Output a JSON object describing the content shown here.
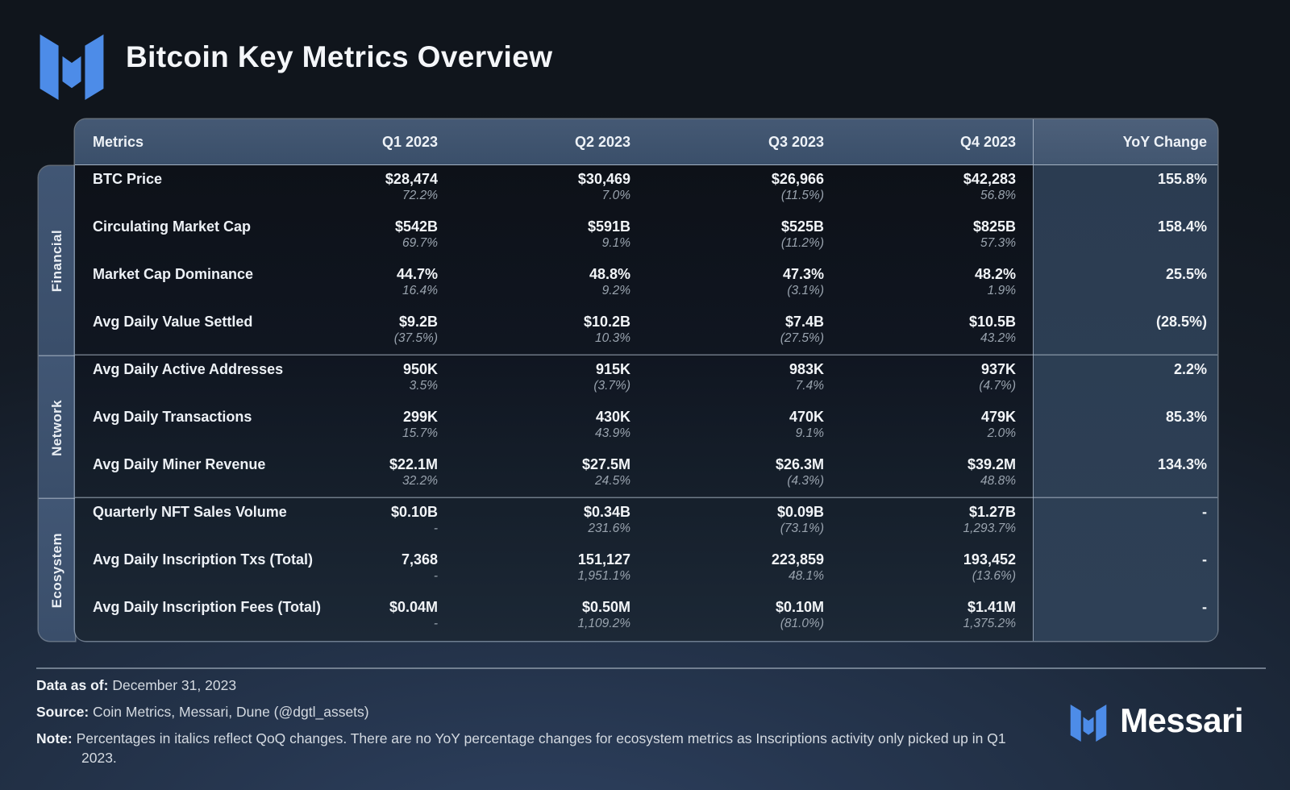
{
  "page": {
    "title": "Bitcoin Key Metrics Overview"
  },
  "colors": {
    "accent_blue": "#4D8CE8",
    "header_bg": "#3E536C",
    "yoy_panel_bg": "#2D3E53",
    "body_bg": "#10161F",
    "sub_text": "#99A3AE"
  },
  "chart_data": {
    "type": "table",
    "title": "Bitcoin Key Metrics Overview",
    "columns": [
      "Metrics",
      "Q1 2023",
      "Q2 2023",
      "Q3 2023",
      "Q4 2023",
      "YoY Change"
    ],
    "note": "Sub-values in italics are QoQ changes; values in parentheses are negative",
    "sections": [
      {
        "category": "Financial",
        "rows": [
          {
            "metric": "BTC Price",
            "q1": "$28,474",
            "q1_sub": "72.2%",
            "q2": "$30,469",
            "q2_sub": "7.0%",
            "q3": "$26,966",
            "q3_sub": "(11.5%)",
            "q4": "$42,283",
            "q4_sub": "56.8%",
            "yoy": "155.8%"
          },
          {
            "metric": "Circulating Market Cap",
            "q1": "$542B",
            "q1_sub": "69.7%",
            "q2": "$591B",
            "q2_sub": "9.1%",
            "q3": "$525B",
            "q3_sub": "(11.2%)",
            "q4": "$825B",
            "q4_sub": "57.3%",
            "yoy": "158.4%"
          },
          {
            "metric": "Market Cap Dominance",
            "q1": "44.7%",
            "q1_sub": "16.4%",
            "q2": "48.8%",
            "q2_sub": "9.2%",
            "q3": "47.3%",
            "q3_sub": "(3.1%)",
            "q4": "48.2%",
            "q4_sub": "1.9%",
            "yoy": "25.5%"
          },
          {
            "metric": "Avg Daily Value Settled",
            "q1": "$9.2B",
            "q1_sub": "(37.5%)",
            "q2": "$10.2B",
            "q2_sub": "10.3%",
            "q3": "$7.4B",
            "q3_sub": "(27.5%)",
            "q4": "$10.5B",
            "q4_sub": "43.2%",
            "yoy": "(28.5%)"
          }
        ]
      },
      {
        "category": "Network",
        "rows": [
          {
            "metric": "Avg Daily Active Addresses",
            "q1": "950K",
            "q1_sub": "3.5%",
            "q2": "915K",
            "q2_sub": "(3.7%)",
            "q3": "983K",
            "q3_sub": "7.4%",
            "q4": "937K",
            "q4_sub": "(4.7%)",
            "yoy": "2.2%"
          },
          {
            "metric": "Avg Daily Transactions",
            "q1": "299K",
            "q1_sub": "15.7%",
            "q2": "430K",
            "q2_sub": "43.9%",
            "q3": "470K",
            "q3_sub": "9.1%",
            "q4": "479K",
            "q4_sub": "2.0%",
            "yoy": "85.3%"
          },
          {
            "metric": "Avg Daily Miner Revenue",
            "q1": "$22.1M",
            "q1_sub": "32.2%",
            "q2": "$27.5M",
            "q2_sub": "24.5%",
            "q3": "$26.3M",
            "q3_sub": "(4.3%)",
            "q4": "$39.2M",
            "q4_sub": "48.8%",
            "yoy": "134.3%"
          }
        ]
      },
      {
        "category": "Ecosystem",
        "rows": [
          {
            "metric": "Quarterly NFT Sales Volume",
            "q1": "$0.10B",
            "q1_sub": "-",
            "q2": "$0.34B",
            "q2_sub": "231.6%",
            "q3": "$0.09B",
            "q3_sub": "(73.1%)",
            "q4": "$1.27B",
            "q4_sub": "1,293.7%",
            "yoy": "-"
          },
          {
            "metric": "Avg Daily Inscription Txs (Total)",
            "q1": "7,368",
            "q1_sub": "-",
            "q2": "151,127",
            "q2_sub": "1,951.1%",
            "q3": "223,859",
            "q3_sub": "48.1%",
            "q4": "193,452",
            "q4_sub": "(13.6%)",
            "yoy": "-"
          },
          {
            "metric": "Avg Daily Inscription Fees (Total)",
            "q1": "$0.04M",
            "q1_sub": "-",
            "q2": "$0.50M",
            "q2_sub": "1,109.2%",
            "q3": "$0.10M",
            "q3_sub": "(81.0%)",
            "q4": "$1.41M",
            "q4_sub": "1,375.2%",
            "yoy": "-"
          }
        ]
      }
    ]
  },
  "footer": {
    "data_as_of_label": "Data as of:",
    "data_as_of_value": "December 31, 2023",
    "source_label": "Source:",
    "source_value": "Coin Metrics, Messari, Dune (@dgtl_assets)",
    "note_label": "Note:",
    "note_value": "Percentages in italics reflect QoQ changes. There are no YoY percentage changes for ecosystem metrics as Inscriptions activity only picked up in Q1 2023.",
    "brand": "Messari"
  }
}
